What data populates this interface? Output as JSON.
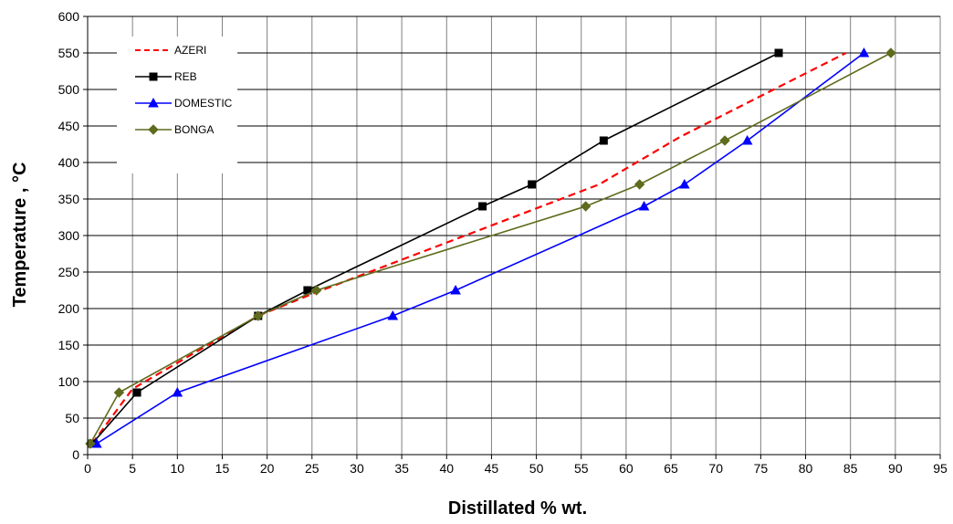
{
  "chart_data": {
    "type": "line",
    "title": "",
    "xlabel": "Distillated % wt.",
    "ylabel": "Temperature , °C",
    "xlim": [
      0,
      95
    ],
    "ylim": [
      0,
      600
    ],
    "xticks": [
      0,
      5,
      10,
      15,
      20,
      25,
      30,
      35,
      40,
      45,
      50,
      55,
      60,
      65,
      70,
      75,
      80,
      85,
      90,
      95
    ],
    "yticks": [
      0,
      50,
      100,
      150,
      200,
      250,
      300,
      350,
      400,
      450,
      500,
      550,
      600
    ],
    "grid": true,
    "legend_position": "top-left",
    "series": [
      {
        "name": "AZERI",
        "color": "#ff0000",
        "line_style": "dashed",
        "marker": "none",
        "points": [
          [
            0.5,
            15
          ],
          [
            5,
            90
          ],
          [
            19,
            190
          ],
          [
            25,
            220
          ],
          [
            41,
            295
          ],
          [
            57,
            370
          ],
          [
            66,
            435
          ],
          [
            84.5,
            550
          ]
        ]
      },
      {
        "name": "REB",
        "color": "#000000",
        "line_style": "solid",
        "marker": "square",
        "points": [
          [
            0.5,
            15
          ],
          [
            5.5,
            85
          ],
          [
            19,
            190
          ],
          [
            24.5,
            225
          ],
          [
            44,
            340
          ],
          [
            49.5,
            370
          ],
          [
            57.5,
            430
          ],
          [
            77,
            550
          ]
        ]
      },
      {
        "name": "DOMESTIC",
        "color": "#0000ff",
        "line_style": "solid",
        "marker": "triangle",
        "points": [
          [
            1,
            15
          ],
          [
            10,
            85
          ],
          [
            34,
            190
          ],
          [
            41,
            225
          ],
          [
            62,
            340
          ],
          [
            66.5,
            370
          ],
          [
            73.5,
            430
          ],
          [
            86.5,
            550
          ]
        ]
      },
      {
        "name": "BONGA",
        "color": "#5f6b1d",
        "line_style": "solid",
        "marker": "diamond",
        "points": [
          [
            0.3,
            15
          ],
          [
            3.5,
            85
          ],
          [
            19,
            190
          ],
          [
            25.5,
            225
          ],
          [
            55.5,
            340
          ],
          [
            61.5,
            370
          ],
          [
            71,
            430
          ],
          [
            89.5,
            550
          ]
        ]
      }
    ]
  }
}
